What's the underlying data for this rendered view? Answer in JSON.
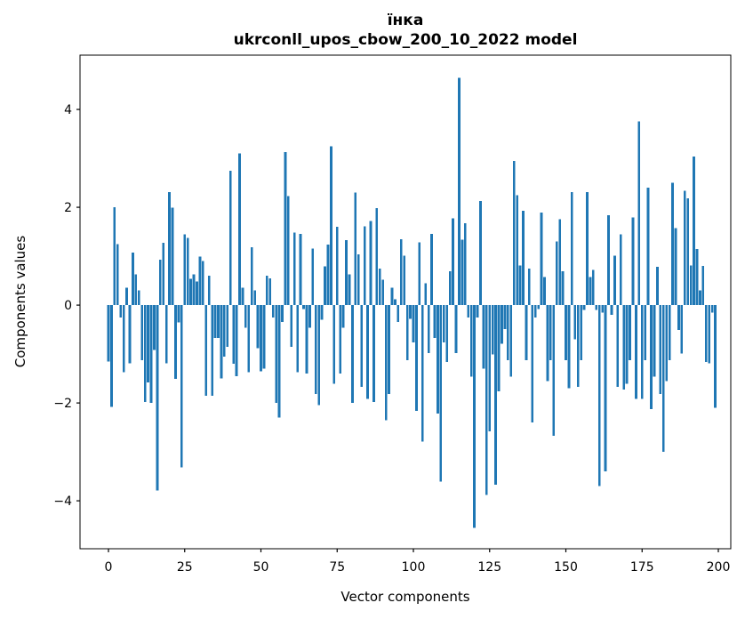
{
  "title": {
    "line1": "їнка",
    "line2": "ukrconll_upos_cbow_200_10_2022 model"
  },
  "chart_data": {
    "type": "bar",
    "title": "їнка\nukrconll_upos_cbow_200_10_2022 model",
    "xlabel": "Vector components",
    "ylabel": "Components values",
    "xlim": [
      -9.3,
      204.1
    ],
    "ylim": [
      -4.98,
      5.11
    ],
    "xticks": [
      0,
      25,
      50,
      75,
      100,
      125,
      150,
      175,
      200
    ],
    "yticks": [
      -4,
      -2,
      0,
      2,
      4
    ],
    "grid": false,
    "legend": null,
    "bar_color": "#1f77b4",
    "spine_color": "#000000",
    "n_components": 200,
    "values": [
      -1.15,
      -2.08,
      2.0,
      1.25,
      -0.25,
      -1.37,
      0.36,
      -1.19,
      1.07,
      0.63,
      0.3,
      -1.13,
      -1.98,
      -1.58,
      -2.0,
      -0.92,
      -3.79,
      0.93,
      1.27,
      -1.19,
      2.31,
      1.99,
      -1.51,
      -0.35,
      -3.32,
      1.45,
      1.37,
      0.54,
      0.63,
      0.48,
      0.99,
      0.9,
      -1.85,
      0.6,
      -1.85,
      -0.67,
      -0.67,
      -1.5,
      -1.05,
      -0.85,
      2.75,
      -1.2,
      -1.45,
      3.1,
      0.36,
      -0.46,
      -1.37,
      1.18,
      0.3,
      -0.88,
      -1.35,
      -1.3,
      0.6,
      0.55,
      -0.25,
      -2.0,
      -2.3,
      -0.34,
      3.13,
      2.23,
      -0.85,
      1.48,
      -1.37,
      1.46,
      -0.08,
      -1.4,
      -0.46,
      1.16,
      -1.82,
      -2.04,
      -0.3,
      0.79,
      1.24,
      3.25,
      -1.61,
      1.6,
      -1.4,
      -0.46,
      1.33,
      0.63,
      -2.0,
      2.3,
      1.04,
      -1.67,
      1.61,
      -1.92,
      1.72,
      -1.98,
      1.98,
      0.75,
      0.52,
      -2.35,
      -1.82,
      0.36,
      0.12,
      -0.34,
      1.35,
      1.01,
      -1.13,
      -0.28,
      -0.76,
      -2.16,
      1.28,
      -2.79,
      0.45,
      -0.98,
      1.46,
      -0.67,
      -2.22,
      -3.61,
      -0.76,
      -1.16,
      0.69,
      1.77,
      -0.98,
      4.65,
      1.34,
      1.67,
      -0.25,
      -1.46,
      -4.55,
      -0.25,
      2.13,
      -1.3,
      -3.88,
      -2.58,
      -1.01,
      -3.67,
      -1.76,
      -0.79,
      -0.49,
      -1.13,
      -1.46,
      2.95,
      2.25,
      0.81,
      1.93,
      -1.13,
      0.75,
      -2.4,
      -0.25,
      -0.08,
      1.89,
      0.57,
      -1.55,
      -1.13,
      -2.67,
      1.3,
      1.76,
      0.69,
      -1.13,
      -1.7,
      2.31,
      -0.7,
      -1.67,
      -1.13,
      -0.1,
      2.31,
      0.57,
      0.72,
      -0.1,
      -3.7,
      -0.15,
      -3.4,
      1.84,
      -0.2,
      1.01,
      -1.67,
      1.45,
      -1.73,
      -1.61,
      -1.13,
      1.79,
      -1.92,
      3.76,
      -1.92,
      -1.13,
      2.4,
      -2.13,
      -1.46,
      0.78,
      -1.82,
      -3.0,
      -1.55,
      -1.13,
      2.5,
      1.57,
      -0.51,
      -0.99,
      2.34,
      2.18,
      0.81,
      3.04,
      1.15,
      0.3,
      0.8,
      -1.16,
      -1.19,
      -0.15,
      -2.1
    ]
  }
}
